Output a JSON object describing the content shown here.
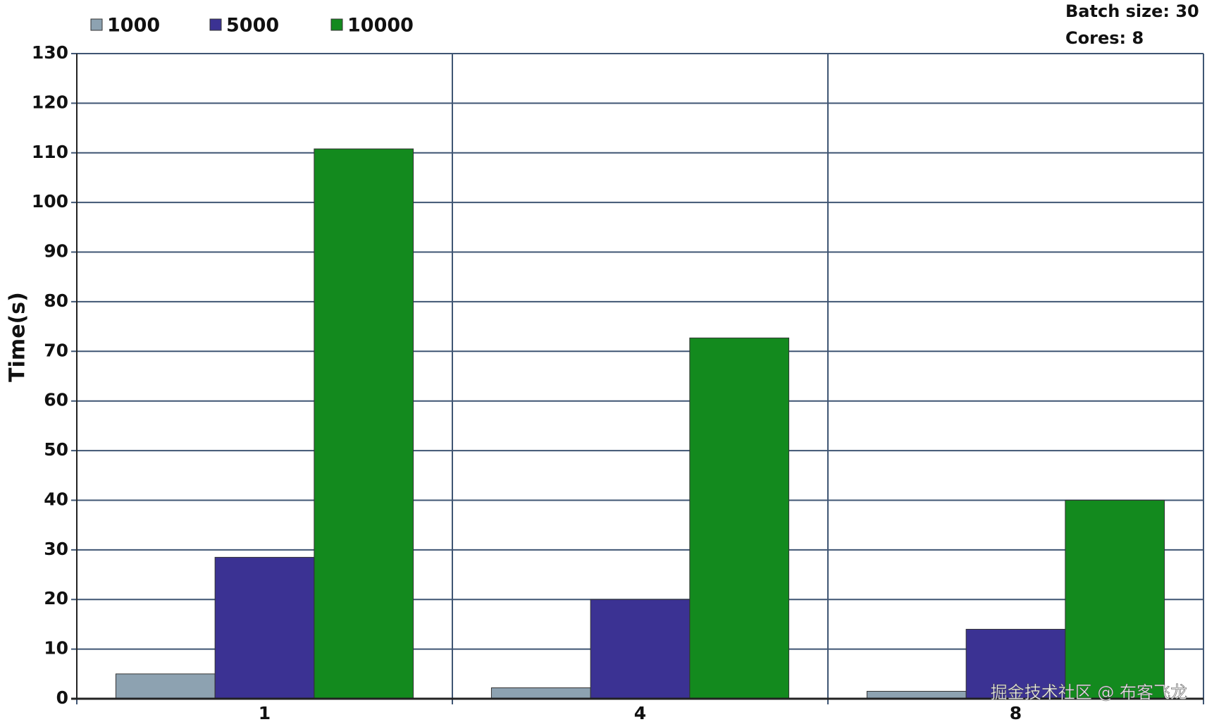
{
  "chart_data": {
    "type": "bar",
    "y_label": "Time(s)",
    "categories": [
      "1",
      "4",
      "8"
    ],
    "series": [
      {
        "name": "1000",
        "color": "#8da2b1",
        "values": [
          5,
          2.2,
          1.5
        ]
      },
      {
        "name": "5000",
        "color": "#3b3293",
        "values": [
          28.5,
          20,
          14
        ]
      },
      {
        "name": "10000",
        "color": "#138a1e",
        "values": [
          110.8,
          72.7,
          40
        ]
      }
    ],
    "ylim": [
      0,
      130
    ],
    "yticks": [
      0,
      10,
      20,
      30,
      40,
      50,
      60,
      70,
      80,
      90,
      100,
      110,
      120,
      130
    ],
    "grid": true,
    "annotations": [
      "Batch size: 30",
      "Cores: 8"
    ],
    "watermark": "掘金技术社区 @ 布客飞龙"
  }
}
